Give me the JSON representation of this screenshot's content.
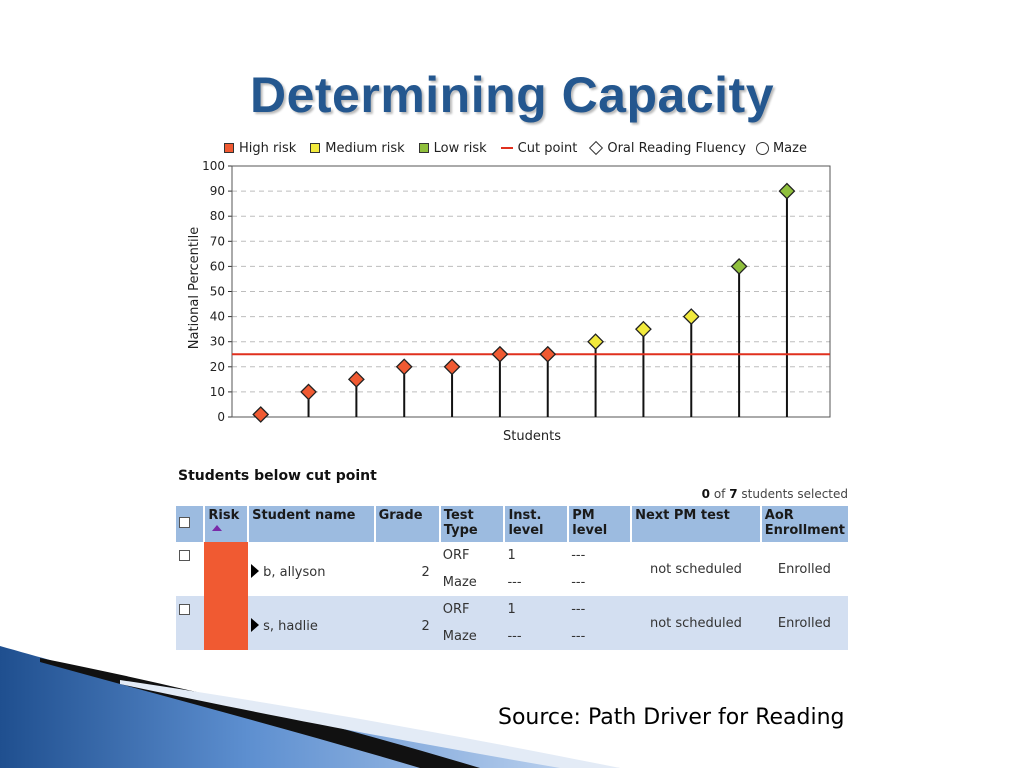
{
  "slide": {
    "title": "Determining Capacity",
    "source": "Source: Path Driver for Reading"
  },
  "legend": [
    {
      "label": "High risk",
      "kind": "square",
      "color": "#f05a32"
    },
    {
      "label": "Medium risk",
      "kind": "square",
      "color": "#f2ea3c"
    },
    {
      "label": "Low risk",
      "kind": "square",
      "color": "#8fbf3c"
    },
    {
      "label": "Cut point",
      "kind": "line",
      "color": "#e0301e"
    },
    {
      "label": "Oral Reading Fluency",
      "kind": "diamond",
      "color": "#ffffff"
    },
    {
      "label": "Maze",
      "kind": "circle",
      "color": "#ffffff"
    }
  ],
  "chart_data": {
    "type": "scatter",
    "title": "",
    "xlabel": "Students",
    "ylabel": "National Percentile",
    "ylim": [
      0,
      100
    ],
    "yticks": [
      0,
      10,
      20,
      30,
      40,
      50,
      60,
      70,
      80,
      90,
      100
    ],
    "grid": true,
    "cut_point": 25,
    "cut_point_color": "#e0301e",
    "marker": "diamond",
    "points": [
      {
        "value": 1,
        "risk": "high"
      },
      {
        "value": 10,
        "risk": "high"
      },
      {
        "value": 15,
        "risk": "high"
      },
      {
        "value": 20,
        "risk": "high"
      },
      {
        "value": 20,
        "risk": "high"
      },
      {
        "value": 25,
        "risk": "high"
      },
      {
        "value": 25,
        "risk": "high"
      },
      {
        "value": 30,
        "risk": "medium"
      },
      {
        "value": 35,
        "risk": "medium"
      },
      {
        "value": 40,
        "risk": "medium"
      },
      {
        "value": 60,
        "risk": "low"
      },
      {
        "value": 90,
        "risk": "low"
      }
    ],
    "risk_colors": {
      "high": "#f05a32",
      "medium": "#f2ea3c",
      "low": "#8fbf3c"
    }
  },
  "table": {
    "title": "Students below cut point",
    "selected_count": "0",
    "selected_total": "7",
    "selected_suffix": "students selected",
    "selected_of": "of",
    "headers": {
      "risk": "Risk",
      "student_name": "Student name",
      "grade": "Grade",
      "test_type": "Test Type",
      "inst_level": "Inst. level",
      "pm_level": "PM level",
      "next_pm_test": "Next PM test",
      "aor_enrollment": "AoR Enrollment"
    },
    "rows": [
      {
        "name": "b, allyson",
        "grade": "2",
        "tests": [
          {
            "type": "ORF",
            "inst": "1",
            "pm": "---"
          },
          {
            "type": "Maze",
            "inst": "---",
            "pm": "---"
          }
        ],
        "next_pm": "not scheduled",
        "enrollment": "Enrolled"
      },
      {
        "name": "s, hadlie",
        "grade": "2",
        "tests": [
          {
            "type": "ORF",
            "inst": "1",
            "pm": "---"
          },
          {
            "type": "Maze",
            "inst": "---",
            "pm": "---"
          }
        ],
        "next_pm": "not scheduled",
        "enrollment": "Enrolled"
      }
    ]
  }
}
